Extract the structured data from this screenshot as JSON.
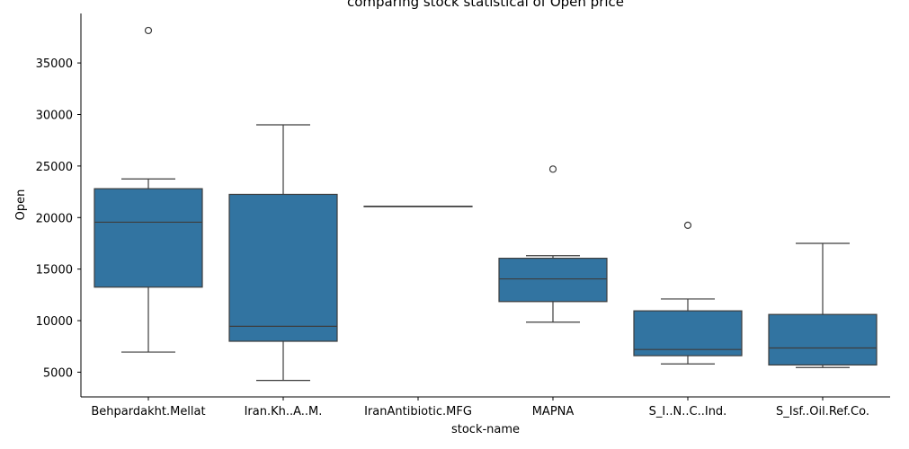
{
  "chart_data": {
    "type": "box",
    "title": "comparing stock statistical of Open price",
    "xlabel": "stock-name",
    "ylabel": "Open",
    "ylim": [
      2600,
      39800
    ],
    "yticks": [
      5000,
      10000,
      15000,
      20000,
      25000,
      30000,
      35000
    ],
    "grid": false,
    "box_color": "#3274a1",
    "line_color": "#3d3d3d",
    "categories": [
      "Behpardakht.Mellat",
      "Iran.Kh..A..M.",
      "IranAntibiotic.MFG",
      "MAPNA",
      "S_I..N..C..Ind.",
      "S_Isf..Oil.Ref.Co."
    ],
    "boxes": [
      {
        "whisker_low": 6950,
        "q1": 13250,
        "median": 19550,
        "q3": 22800,
        "whisker_high": 23750,
        "outliers": [
          38150
        ]
      },
      {
        "whisker_low": 4200,
        "q1": 8000,
        "median": 9450,
        "q3": 22250,
        "whisker_high": 29000,
        "outliers": []
      },
      {
        "whisker_low": 21100,
        "q1": 21100,
        "median": 21100,
        "q3": 21100,
        "whisker_high": 21100,
        "outliers": []
      },
      {
        "whisker_low": 9850,
        "q1": 11850,
        "median": 14050,
        "q3": 16050,
        "whisker_high": 16300,
        "outliers": [
          24700
        ]
      },
      {
        "whisker_low": 5800,
        "q1": 6600,
        "median": 7200,
        "q3": 10950,
        "whisker_high": 12100,
        "outliers": [
          19250
        ]
      },
      {
        "whisker_low": 5450,
        "q1": 5700,
        "median": 7350,
        "q3": 10600,
        "whisker_high": 17500,
        "outliers": []
      }
    ]
  }
}
